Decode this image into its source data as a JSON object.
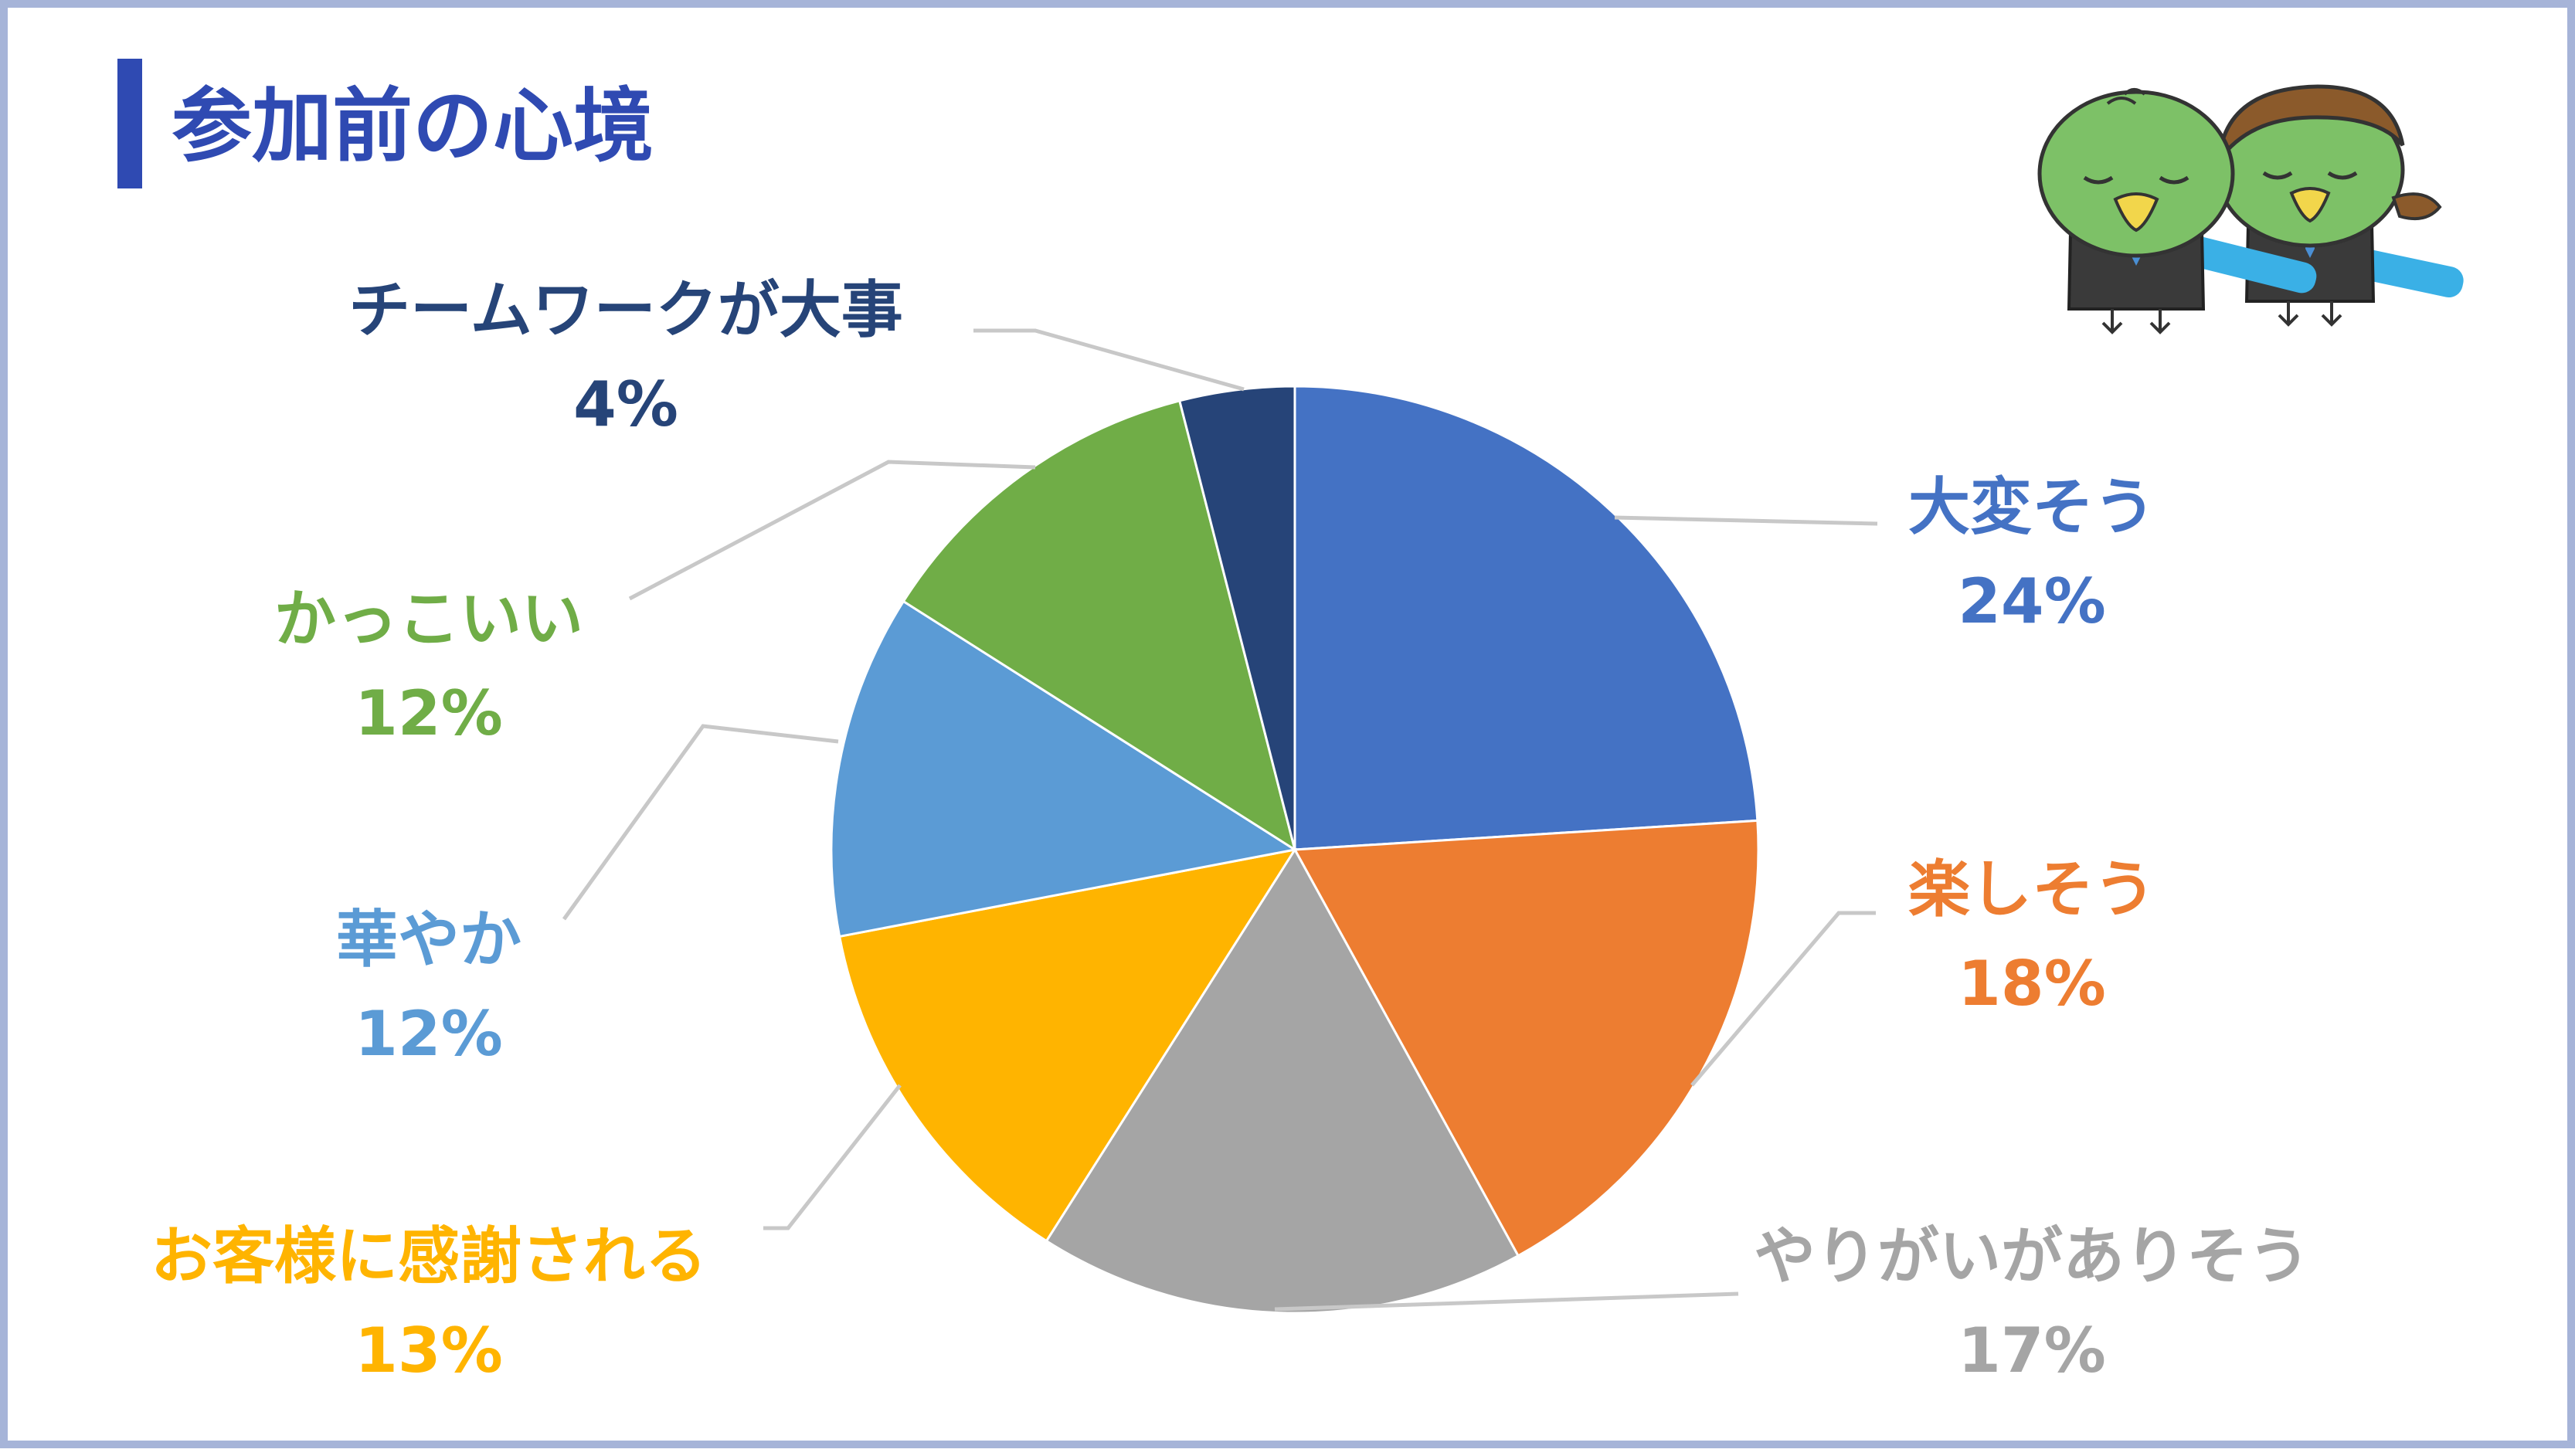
{
  "slide": {
    "title": "参加前の心境"
  },
  "colors": {
    "title": "#2f4ab2",
    "border": "#a6b4d8",
    "leader_line": "#c8c8c8"
  },
  "chart_data": {
    "type": "pie",
    "title": "",
    "start_angle_deg": 0,
    "direction": "clockwise",
    "slices": [
      {
        "label": "大変そう",
        "value": 24,
        "value_label": "24%",
        "color": "#4472c4"
      },
      {
        "label": "楽しそう",
        "value": 18,
        "value_label": "18%",
        "color": "#ed7d31"
      },
      {
        "label": "やりがいがありそう",
        "value": 17,
        "value_label": "17%",
        "color": "#a5a5a5"
      },
      {
        "label": "お客様に感謝される",
        "value": 13,
        "value_label": "13%",
        "color": "#ffb400"
      },
      {
        "label": "華やか",
        "value": 12,
        "value_label": "12%",
        "color": "#5b9bd5"
      },
      {
        "label": "かっこいい",
        "value": 12,
        "value_label": "12%",
        "color": "#70ad47"
      },
      {
        "label": "チームワークが大事",
        "value": 4,
        "value_label": "4%",
        "color": "#264478"
      }
    ]
  },
  "decor": {
    "mascot_icon": "kappa-mascot-pair-icon"
  }
}
